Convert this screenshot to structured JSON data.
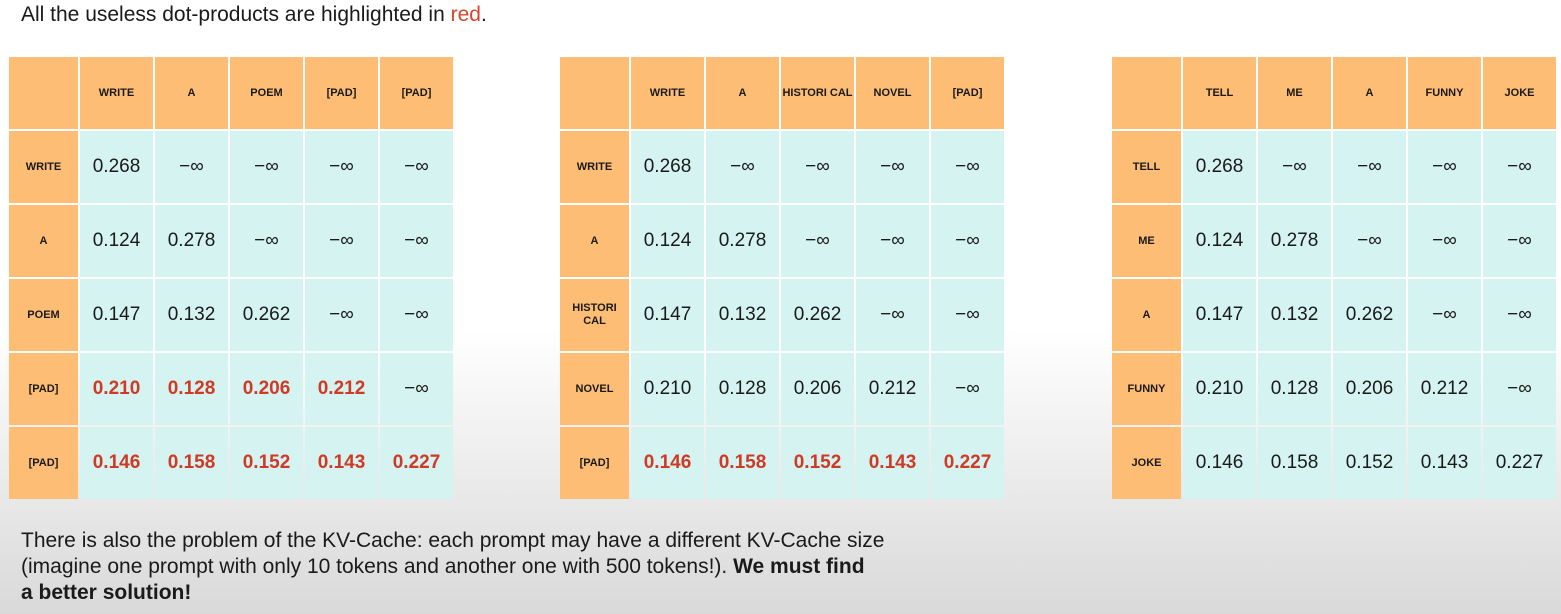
{
  "title": {
    "prefix": "All the useless dot-products are highlighted in ",
    "red_word": "red",
    "suffix": ".",
    "accent_color": "#d5462f"
  },
  "matrices": [
    {
      "columns": [
        "WRITE",
        "A",
        "POEM",
        "[PAD]",
        "[PAD]"
      ],
      "rows": [
        {
          "label": "WRITE",
          "cells": [
            "0.268",
            "−∞",
            "−∞",
            "−∞",
            "−∞"
          ],
          "red": [
            false,
            false,
            false,
            false,
            false
          ]
        },
        {
          "label": "A",
          "cells": [
            "0.124",
            "0.278",
            "−∞",
            "−∞",
            "−∞"
          ],
          "red": [
            false,
            false,
            false,
            false,
            false
          ]
        },
        {
          "label": "POEM",
          "cells": [
            "0.147",
            "0.132",
            "0.262",
            "−∞",
            "−∞"
          ],
          "red": [
            false,
            false,
            false,
            false,
            false
          ]
        },
        {
          "label": "[PAD]",
          "cells": [
            "0.210",
            "0.128",
            "0.206",
            "0.212",
            "−∞"
          ],
          "red": [
            true,
            true,
            true,
            true,
            false
          ]
        },
        {
          "label": "[PAD]",
          "cells": [
            "0.146",
            "0.158",
            "0.152",
            "0.143",
            "0.227"
          ],
          "red": [
            true,
            true,
            true,
            true,
            true
          ]
        }
      ]
    },
    {
      "columns": [
        "WRITE",
        "A",
        "HISTORI CAL",
        "NOVEL",
        "[PAD]"
      ],
      "rows": [
        {
          "label": "WRITE",
          "cells": [
            "0.268",
            "−∞",
            "−∞",
            "−∞",
            "−∞"
          ],
          "red": [
            false,
            false,
            false,
            false,
            false
          ]
        },
        {
          "label": "A",
          "cells": [
            "0.124",
            "0.278",
            "−∞",
            "−∞",
            "−∞"
          ],
          "red": [
            false,
            false,
            false,
            false,
            false
          ]
        },
        {
          "label": "HISTORI CAL",
          "cells": [
            "0.147",
            "0.132",
            "0.262",
            "−∞",
            "−∞"
          ],
          "red": [
            false,
            false,
            false,
            false,
            false
          ]
        },
        {
          "label": "NOVEL",
          "cells": [
            "0.210",
            "0.128",
            "0.206",
            "0.212",
            "−∞"
          ],
          "red": [
            false,
            false,
            false,
            false,
            false
          ]
        },
        {
          "label": "[PAD]",
          "cells": [
            "0.146",
            "0.158",
            "0.152",
            "0.143",
            "0.227"
          ],
          "red": [
            true,
            true,
            true,
            true,
            true
          ]
        }
      ]
    },
    {
      "columns": [
        "TELL",
        "ME",
        "A",
        "FUNNY",
        "JOKE"
      ],
      "rows": [
        {
          "label": "TELL",
          "cells": [
            "0.268",
            "−∞",
            "−∞",
            "−∞",
            "−∞"
          ],
          "red": [
            false,
            false,
            false,
            false,
            false
          ]
        },
        {
          "label": "ME",
          "cells": [
            "0.124",
            "0.278",
            "−∞",
            "−∞",
            "−∞"
          ],
          "red": [
            false,
            false,
            false,
            false,
            false
          ]
        },
        {
          "label": "A",
          "cells": [
            "0.147",
            "0.132",
            "0.262",
            "−∞",
            "−∞"
          ],
          "red": [
            false,
            false,
            false,
            false,
            false
          ]
        },
        {
          "label": "FUNNY",
          "cells": [
            "0.210",
            "0.128",
            "0.206",
            "0.212",
            "−∞"
          ],
          "red": [
            false,
            false,
            false,
            false,
            false
          ]
        },
        {
          "label": "JOKE",
          "cells": [
            "0.146",
            "0.158",
            "0.152",
            "0.143",
            "0.227"
          ],
          "red": [
            false,
            false,
            false,
            false,
            false
          ]
        }
      ]
    }
  ],
  "colors": {
    "header_orange": "#fdbd74",
    "cell_cyan": "#d4f3f1",
    "highlight_red": "#d03a25"
  },
  "bottom": {
    "line1": "There is also the problem of the KV-Cache: each prompt may have a different KV-Cache size",
    "line2": "(imagine one prompt with only 10 tokens and another one with 500 tokens!). ",
    "bold1": "We must find",
    "bold2": "a better solution!"
  }
}
